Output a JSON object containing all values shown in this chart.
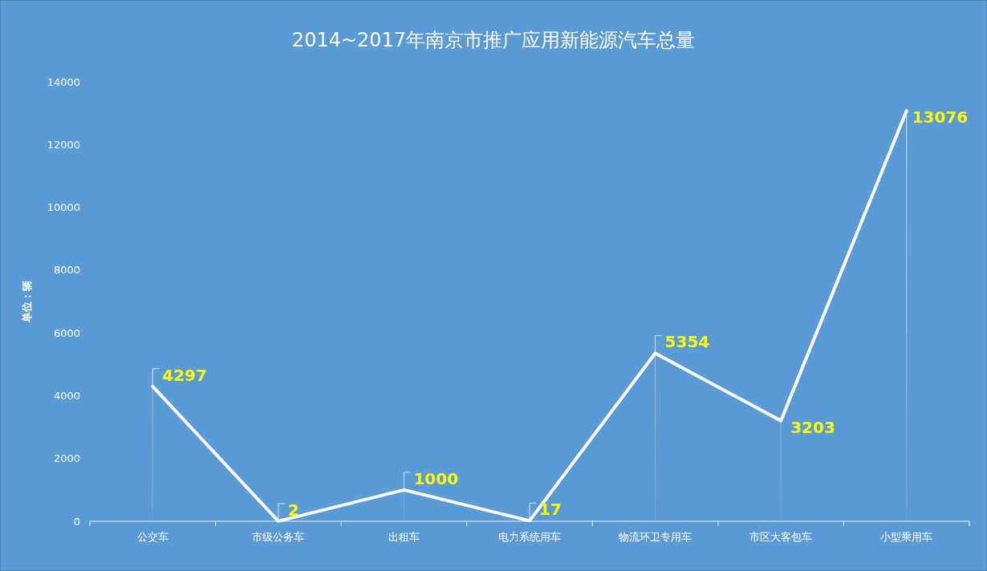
{
  "chart_data": {
    "type": "line",
    "title": "2014~2017年南京市推广应用新能源汽车总量",
    "ylabel": "单位：辆",
    "categories": [
      "公交车",
      "市级公务车",
      "出租车",
      "电力系统用车",
      "物流环卫专用车",
      "市区大客包车",
      "小型乘用车"
    ],
    "series": [
      {
        "color": "#ffffff",
        "values": [
          4297,
          2,
          1000,
          17,
          5354,
          3203,
          13076
        ]
      }
    ],
    "ylim": [
      0,
      14000
    ],
    "yticks": [
      0,
      2000,
      4000,
      6000,
      8000,
      10000,
      12000,
      14000
    ],
    "marker": "none",
    "line_style": "solid",
    "data_labels": true
  }
}
